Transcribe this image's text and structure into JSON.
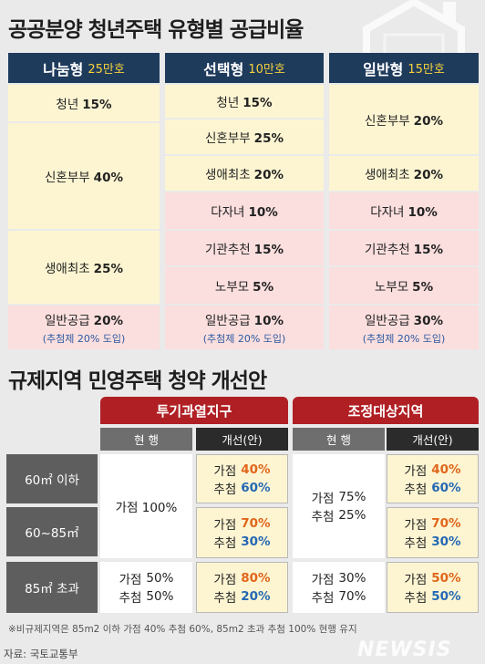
{
  "title1": "공공분양 청년주택 유형별 공급비율",
  "types": [
    {
      "name": "나눔형",
      "amount": "25만호"
    },
    {
      "name": "선택형",
      "amount": "10만호"
    },
    {
      "name": "일반형",
      "amount": "15만호"
    }
  ],
  "col1": {
    "youth": {
      "label": "청년",
      "pct": "15%"
    },
    "newlywed": {
      "label": "신혼부부",
      "pct": "40%"
    },
    "firsttime": {
      "label": "생애최초",
      "pct": "25%"
    },
    "general": {
      "label": "일반공급",
      "pct": "20%",
      "note": "(추첨제 20% 도입)"
    }
  },
  "col2": {
    "youth": {
      "label": "청년",
      "pct": "15%"
    },
    "newlywed": {
      "label": "신혼부부",
      "pct": "25%"
    },
    "firsttime": {
      "label": "생애최초",
      "pct": "20%"
    },
    "multichild": {
      "label": "다자녀",
      "pct": "10%"
    },
    "institution": {
      "label": "기관추천",
      "pct": "15%"
    },
    "elderly": {
      "label": "노부모",
      "pct": "5%"
    },
    "general": {
      "label": "일반공급",
      "pct": "10%",
      "note": "(추첨제 20% 도입)"
    }
  },
  "col3": {
    "newlywed": {
      "label": "신혼부부",
      "pct": "20%"
    },
    "firsttime": {
      "label": "생애최초",
      "pct": "20%"
    },
    "multichild": {
      "label": "다자녀",
      "pct": "10%"
    },
    "institution": {
      "label": "기관추천",
      "pct": "15%"
    },
    "elderly": {
      "label": "노부모",
      "pct": "5%"
    },
    "general": {
      "label": "일반공급",
      "pct": "30%",
      "note": "(추첨제 20% 도입)"
    }
  },
  "title2": "규제지역 민영주택 청약 개선안",
  "zones": [
    "투기과열지구",
    "조정대상지역"
  ],
  "subheads": {
    "current": "현  행",
    "proposed": "개선(안)"
  },
  "rows": [
    "60㎡ 이하",
    "60~85㎡",
    "85㎡ 초과"
  ],
  "words": {
    "gajeom": "가점",
    "chucheom": "추첨"
  },
  "z1": {
    "cur_small": "가점 100%",
    "cur_large": {
      "gajeom": "50%",
      "chucheom": "50%"
    },
    "prop": [
      {
        "gajeom": "40%",
        "chucheom": "60%"
      },
      {
        "gajeom": "70%",
        "chucheom": "30%"
      },
      {
        "gajeom": "80%",
        "chucheom": "20%"
      }
    ]
  },
  "z2": {
    "cur_small": {
      "gajeom": "75%",
      "chucheom": "25%"
    },
    "cur_large": {
      "gajeom": "30%",
      "chucheom": "70%"
    },
    "prop": [
      {
        "gajeom": "40%",
        "chucheom": "60%"
      },
      {
        "gajeom": "70%",
        "chucheom": "30%"
      },
      {
        "gajeom": "50%",
        "chucheom": "50%"
      }
    ]
  },
  "footnote": "※비규제지역은 85m2 이하 가점 40% 추첨 60%, 85m2 초과 추첨 100% 현행 유지",
  "source": "자료: 국토교통부",
  "watermark": "NEWSIS",
  "colors": {
    "navy": "#1f3b5c",
    "red": "#b01f24",
    "yellow": "#fdf5d2",
    "pink": "#fbdede",
    "orange": "#e0661b",
    "blue": "#2468b4"
  }
}
